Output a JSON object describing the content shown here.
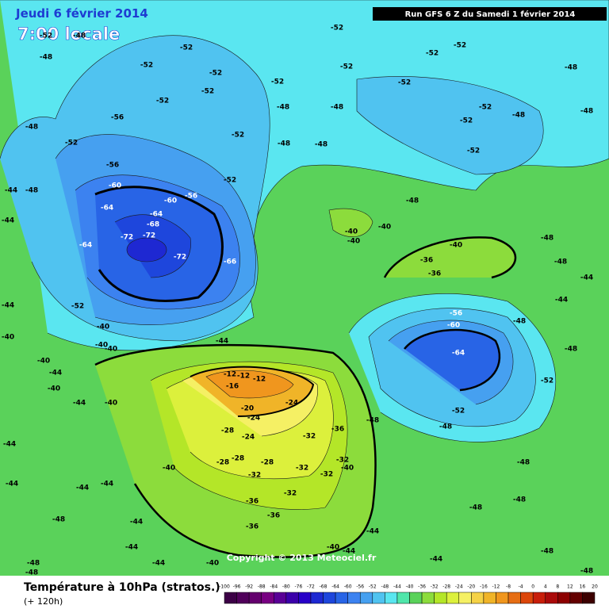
{
  "header": {
    "date": "Jeudi 6 février 2014",
    "time": "7:00 locale",
    "run": "Run GFS 6 Z du Samedi 1 février 2014"
  },
  "footer": {
    "title": "Température à 10hPa (stratos.)",
    "lead": "(+ 120h)",
    "copyright": "Copyright © 2013 Meteociel.fr"
  },
  "colorbar": {
    "ticks": [
      -100,
      -96,
      -92,
      -88,
      -84,
      -80,
      -76,
      -72,
      -68,
      -64,
      -60,
      -56,
      -52,
      -48,
      -44,
      -40,
      -36,
      -32,
      -28,
      -24,
      -20,
      -16,
      -12,
      -8,
      -4,
      0,
      4,
      8,
      12,
      16,
      20
    ],
    "colors": [
      "#3c0046",
      "#50005a",
      "#64006e",
      "#780082",
      "#5a0096",
      "#3c00aa",
      "#2800c8",
      "#1e28d2",
      "#1e46dc",
      "#2864e6",
      "#3c82f0",
      "#46a0f0",
      "#50c3f0",
      "#5ae6f0",
      "#50e6aa",
      "#5ad25a",
      "#8cdc3c",
      "#b4e628",
      "#dcf03c",
      "#f5f064",
      "#f5d246",
      "#f0b428",
      "#f0961e",
      "#e66e14",
      "#dc460a",
      "#c81e0a",
      "#aa0a0a",
      "#8c0000",
      "#640000",
      "#3c0000"
    ]
  },
  "contour_labels": [
    "-52",
    "-48",
    "-52",
    "-52",
    "-52",
    "-52",
    "-52",
    "-56",
    "-52",
    "-56",
    "-60",
    "-64",
    "-60",
    "-56",
    "-64",
    "-68",
    "-72",
    "-72",
    "-72",
    "-64",
    "-66",
    "-52",
    "-52",
    "-52",
    "-52",
    "-48",
    "-48",
    "-52",
    "-52",
    "-52",
    "-52",
    "-52",
    "-52",
    "-52",
    "-48",
    "-52",
    "-48",
    "-48",
    "-48",
    "-40",
    "-40",
    "-40",
    "-36",
    "-40",
    "-36",
    "-56",
    "-60",
    "-64",
    "-52",
    "-52",
    "-48",
    "-48",
    "-48",
    "-44",
    "-48",
    "-48",
    "-44",
    "-44",
    "-44",
    "-40",
    "-40",
    "-44",
    "-40",
    "-44",
    "-40",
    "-40",
    "-12",
    "-12",
    "-12",
    "-16",
    "-20",
    "-24",
    "-24",
    "-28",
    "-24",
    "-28",
    "-28",
    "-28",
    "-32",
    "-32",
    "-32",
    "-40",
    "-32",
    "-36",
    "-32",
    "-32",
    "-36",
    "-36",
    "-36",
    "-40",
    "-44",
    "-44",
    "-44",
    "-44",
    "-44",
    "-48",
    "-48",
    "-48",
    "-44",
    "-44",
    "-40",
    "-40",
    "-44",
    "-48",
    "-48",
    "-48",
    "-48",
    "-44",
    "-44",
    "-48",
    "-48",
    "-48",
    "-48",
    "-48",
    "-44",
    "-48",
    "-48",
    "-44",
    "-40",
    "-40"
  ]
}
